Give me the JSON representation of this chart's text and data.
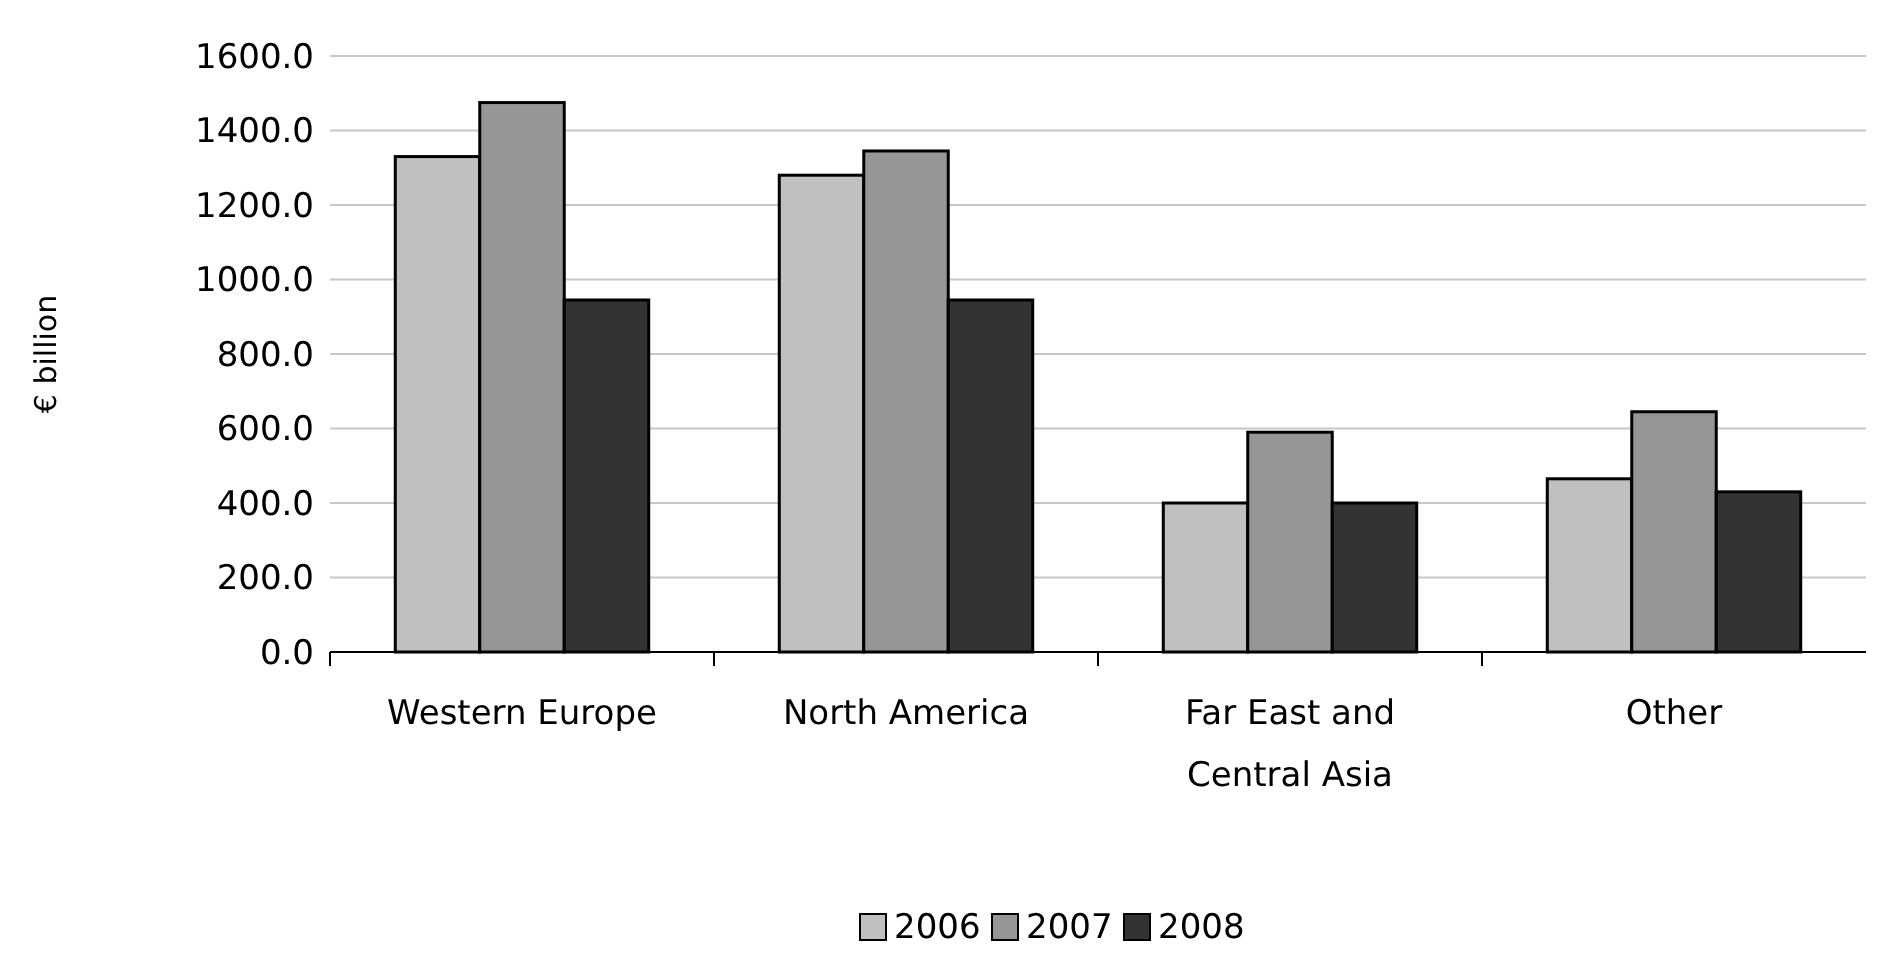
{
  "chart_data": {
    "type": "bar",
    "ylabel": "€ billion",
    "categories": [
      "Western Europe",
      "North America",
      "Far East and Central Asia",
      "Other"
    ],
    "series": [
      {
        "name": "2006",
        "color": "#c0c0c0",
        "values": [
          1330,
          1280,
          400,
          465
        ]
      },
      {
        "name": "2007",
        "color": "#969696",
        "values": [
          1475,
          1345,
          590,
          645
        ]
      },
      {
        "name": "2008",
        "color": "#333333",
        "values": [
          945,
          945,
          400,
          430
        ]
      }
    ],
    "ylim": [
      0,
      1600
    ],
    "yticks": [
      {
        "value": 0,
        "label": "0.0"
      },
      {
        "value": 200,
        "label": "200.0"
      },
      {
        "value": 400,
        "label": "400.0"
      },
      {
        "value": 600,
        "label": "600.0"
      },
      {
        "value": 800,
        "label": "800.0"
      },
      {
        "value": 1000,
        "label": "1000.0"
      },
      {
        "value": 1200,
        "label": "1200.0"
      },
      {
        "value": 1400,
        "label": "1400.0"
      },
      {
        "value": 1600,
        "label": "1600.0"
      }
    ],
    "grid": "y",
    "legend": "bottom"
  }
}
